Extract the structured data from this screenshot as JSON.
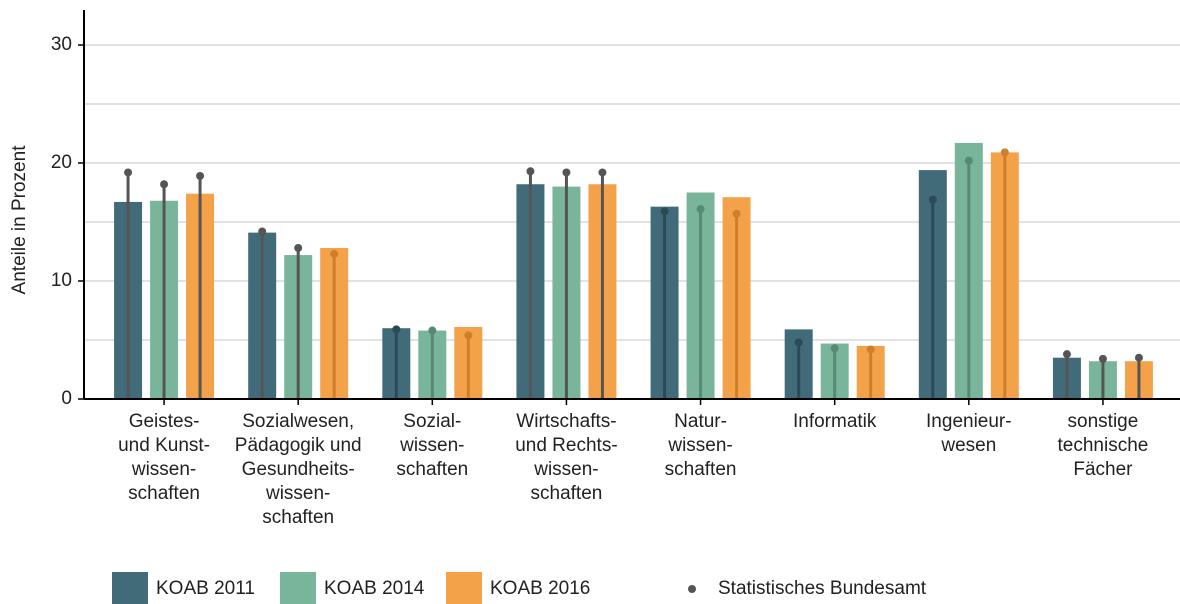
{
  "chart_data": {
    "type": "bar",
    "y_label": "Anteile in Prozent",
    "categories": [
      "Geistes-\nund Kunst-\nwissen-\nschaften",
      "Sozialwesen,\nPädagogik und\nGesundheits-\nwissen-\nschaften",
      "Sozial-\nwissen-\nschaften",
      "Wirtschafts-\nund Rechts-\nwissen-\nschaften",
      "Natur-\nwissen-\nschaften",
      "Informatik",
      "Ingenieur-\nwesen",
      "sonstige\ntechnische\nFächer"
    ],
    "series": [
      {
        "name": "KOAB 2011",
        "color": "#426b7a",
        "line_color": "#2c4a56",
        "values": [
          16.7,
          14.1,
          6.0,
          18.2,
          16.3,
          5.9,
          19.4,
          3.5
        ],
        "reference_values": [
          19.2,
          14.2,
          5.9,
          19.3,
          15.9,
          4.8,
          16.9,
          3.8
        ]
      },
      {
        "name": "KOAB 2014",
        "color": "#79b59a",
        "line_color": "#578a73",
        "values": [
          16.8,
          12.2,
          5.8,
          18.0,
          17.5,
          4.7,
          21.7,
          3.2
        ],
        "reference_values": [
          18.2,
          12.8,
          5.8,
          19.2,
          16.1,
          4.3,
          20.2,
          3.4
        ]
      },
      {
        "name": "KOAB 2016",
        "color": "#f4a24a",
        "line_color": "#cf7f2c",
        "values": [
          17.4,
          12.8,
          6.1,
          18.2,
          17.1,
          4.5,
          20.9,
          3.2
        ],
        "reference_values": [
          18.9,
          12.3,
          5.4,
          19.2,
          15.7,
          4.2,
          20.9,
          3.5
        ]
      }
    ],
    "reference_name": "Statistisches Bundesamt",
    "reference_color": "#555555",
    "ylim": [
      0,
      30
    ],
    "yticks": [
      0,
      10,
      20,
      30
    ],
    "minor_yticks": [
      5,
      15,
      25
    ],
    "grid": true
  }
}
